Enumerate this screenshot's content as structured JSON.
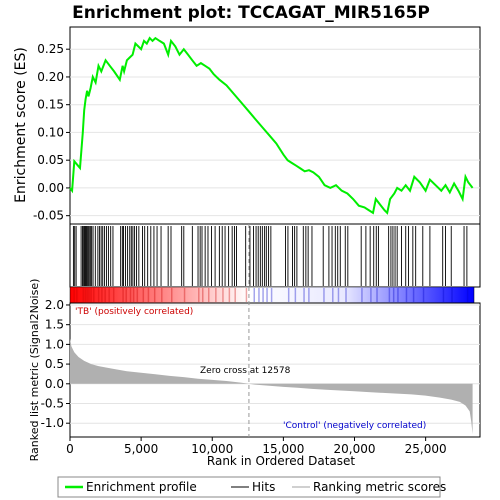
{
  "chart_data": {
    "type": "line",
    "title": "Enrichment plot: TCCAGAT_MIR5165P",
    "es_panel": {
      "ylabel": "Enrichment score (ES)",
      "ylim": [
        -0.065,
        0.29
      ],
      "yticks": [
        -0.05,
        0.0,
        0.05,
        0.1,
        0.15,
        0.2,
        0.25
      ],
      "ytick_labels": [
        "-0.05",
        "0.00",
        "0.05",
        "0.10",
        "0.15",
        "0.20",
        "0.25"
      ],
      "x": [
        0,
        150,
        300,
        700,
        900,
        1000,
        1100,
        1200,
        1300,
        1450,
        1600,
        1800,
        2000,
        2200,
        2500,
        2800,
        3100,
        3500,
        3700,
        3800,
        4000,
        4200,
        4400,
        4600,
        4800,
        5000,
        5200,
        5400,
        5600,
        5800,
        6000,
        6300,
        6600,
        6900,
        7100,
        7400,
        7700,
        8000,
        8300,
        8600,
        8900,
        9200,
        9500,
        9800,
        10100,
        10500,
        11000,
        11500,
        12000,
        12500,
        13000,
        13500,
        14000,
        14500,
        15000,
        15300,
        15600,
        15900,
        16200,
        16500,
        16800,
        17100,
        17500,
        17900,
        18300,
        18700,
        19100,
        19500,
        19900,
        20300,
        20700,
        21000,
        21300,
        21500,
        21800,
        22100,
        22300,
        22500,
        22800,
        23000,
        23300,
        23600,
        23900,
        24200,
        24600,
        25000,
        25300,
        25700,
        26100,
        26400,
        26700,
        27000,
        27300,
        27600,
        27800,
        28000,
        28300
      ],
      "y": [
        0.0,
        -0.005,
        0.048,
        0.036,
        0.1,
        0.14,
        0.16,
        0.175,
        0.165,
        0.18,
        0.2,
        0.19,
        0.22,
        0.21,
        0.23,
        0.22,
        0.21,
        0.195,
        0.22,
        0.21,
        0.23,
        0.235,
        0.24,
        0.26,
        0.255,
        0.25,
        0.265,
        0.26,
        0.27,
        0.265,
        0.27,
        0.265,
        0.26,
        0.24,
        0.265,
        0.255,
        0.24,
        0.25,
        0.24,
        0.23,
        0.22,
        0.225,
        0.22,
        0.215,
        0.205,
        0.195,
        0.185,
        0.17,
        0.155,
        0.14,
        0.125,
        0.11,
        0.095,
        0.08,
        0.06,
        0.05,
        0.045,
        0.04,
        0.035,
        0.03,
        0.032,
        0.028,
        0.02,
        0.005,
        0.0,
        0.005,
        -0.005,
        -0.01,
        -0.02,
        -0.032,
        -0.035,
        -0.04,
        -0.045,
        -0.02,
        -0.03,
        -0.04,
        -0.045,
        -0.02,
        -0.01,
        0.0,
        -0.005,
        0.005,
        -0.005,
        0.02,
        0.01,
        -0.005,
        0.015,
        0.005,
        -0.005,
        0.005,
        -0.008,
        0.008,
        -0.005,
        -0.02,
        0.02,
        0.01,
        0.0
      ]
    },
    "hits": [
      240,
      330,
      430,
      780,
      880,
      960,
      1020,
      1090,
      1150,
      1210,
      1280,
      1350,
      1430,
      1520,
      1620,
      1780,
      1960,
      2080,
      2190,
      2300,
      2420,
      2560,
      2700,
      2860,
      3020,
      3560,
      3680,
      3760,
      3900,
      4050,
      4200,
      4310,
      4420,
      4540,
      4680,
      4840,
      5100,
      5250,
      5460,
      5680,
      5900,
      6120,
      6400,
      6900,
      7100,
      7850,
      8000,
      8600,
      9000,
      9150,
      9280,
      9500,
      9700,
      9950,
      10200,
      10500,
      10700,
      10900,
      11150,
      11400,
      11560,
      11700,
      12350,
      12650,
      12900,
      13080,
      13230,
      13380,
      13520,
      13680,
      13800,
      13960,
      14120,
      15150,
      15320,
      15640,
      15790,
      15950,
      16400,
      16580,
      16740,
      17010,
      17800,
      18200,
      18420,
      18650,
      18820,
      19000,
      19350,
      19530,
      20470,
      20800,
      21100,
      21350,
      21530,
      21680,
      22400,
      22560,
      22700,
      22850,
      23000,
      23300,
      23600,
      23800,
      24100,
      24300,
      24800,
      25300,
      26200,
      26400,
      26800,
      27700,
      27900
    ],
    "metric_heatmap": {
      "label_pos": "'TB' (positively correlated)",
      "label_neg": "'Control' (negatively correlated)",
      "colors": [
        "#ff0000",
        "#ffffff",
        "#0000ff"
      ]
    },
    "metric_panel": {
      "ylabel": "Ranked list metric (Signal2Noise)",
      "ylim": [
        -1.35,
        2.05
      ],
      "yticks": [
        -1.0,
        -0.5,
        0.0,
        0.5,
        1.0,
        1.5,
        2.0
      ],
      "ytick_labels": [
        "-1.0",
        "-0.5",
        "0.0",
        "0.5",
        "1.0",
        "1.5",
        "2.0"
      ],
      "zero_cross_label": "Zero cross at 12578",
      "zero_cross": 12578,
      "x": [
        0,
        100,
        300,
        600,
        1000,
        1500,
        2000,
        3000,
        4000,
        5000,
        6000,
        7000,
        8000,
        9000,
        10000,
        11000,
        12000,
        12578,
        13000,
        14000,
        15000,
        16000,
        17000,
        18000,
        19000,
        20000,
        21000,
        22000,
        23000,
        24000,
        25000,
        26000,
        26800,
        27400,
        27800,
        28100,
        28200,
        28300
      ],
      "y": [
        1.15,
        0.95,
        0.8,
        0.68,
        0.58,
        0.5,
        0.45,
        0.38,
        0.32,
        0.28,
        0.24,
        0.2,
        0.17,
        0.13,
        0.1,
        0.07,
        0.03,
        0.0,
        -0.02,
        -0.05,
        -0.08,
        -0.1,
        -0.13,
        -0.15,
        -0.17,
        -0.19,
        -0.21,
        -0.23,
        -0.25,
        -0.27,
        -0.3,
        -0.35,
        -0.4,
        -0.46,
        -0.55,
        -0.7,
        -0.95,
        -1.28
      ]
    },
    "xaxis": {
      "label": "Rank in Ordered Dataset",
      "xlim": [
        0,
        29000
      ],
      "ticks": [
        0,
        5000,
        10000,
        15000,
        20000,
        25000
      ],
      "tick_labels": [
        "0",
        "5,000",
        "10,000",
        "15,000",
        "20,000",
        "25,000"
      ]
    },
    "legend": {
      "position": "bottom",
      "items": [
        {
          "label": "Enrichment profile",
          "color": "#00ff00"
        },
        {
          "label": "Hits",
          "color": "#000000"
        },
        {
          "label": "Ranking metric scores",
          "color": "#c0c0c0"
        }
      ]
    }
  }
}
